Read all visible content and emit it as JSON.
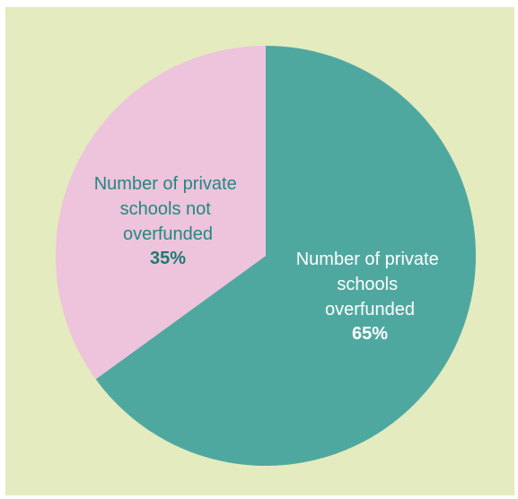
{
  "chart_data": {
    "type": "pie",
    "title": "",
    "slices": [
      {
        "label_lines": [
          "Number of private",
          "schools",
          "overfunded"
        ],
        "value": 65,
        "value_label": "65%",
        "color": "#4fa8a0",
        "text_color": "#ffffff",
        "pct_color": "#ffffff"
      },
      {
        "label_lines": [
          "Number of private",
          "schools not",
          "overfunded"
        ],
        "value": 35,
        "value_label": "35%",
        "color": "#eec3dc",
        "text_color": "#1f8a80",
        "pct_color": "#1d7a72"
      }
    ],
    "start_angle": "top",
    "direction": "clockwise",
    "legend": "none"
  },
  "colors": {
    "background": "#e3ebbf"
  }
}
